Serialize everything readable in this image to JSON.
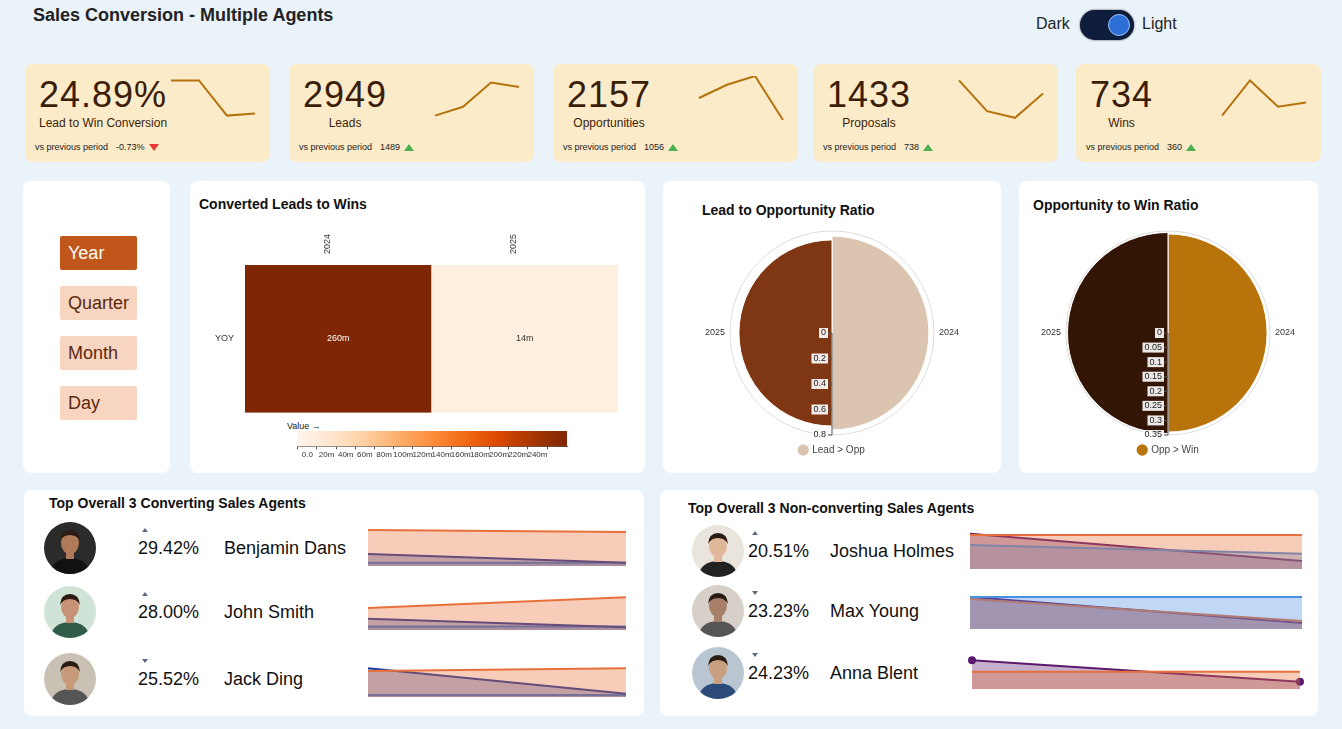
{
  "title": "Sales Conversion - Multiple Agents",
  "theme_toggle": [
    "Dark",
    "Light"
  ],
  "kpis": [
    {
      "value": "24.89%",
      "label": "Lead to Win Conversion",
      "comparison": "vs previous period",
      "delta": "-0.73%",
      "direction": "down",
      "chart_data": {
        "type": "line",
        "categories": [
          null,
          null,
          null,
          null
        ],
        "values": [
          9,
          9,
          1,
          1.5
        ],
        "color": "#b5730f",
        "ylim": [
          0,
          10
        ],
        "tick_labels": false
      }
    },
    {
      "value": "2949",
      "label": "Leads",
      "comparison": "vs previous period",
      "delta": "1489",
      "direction": "up",
      "chart_data": {
        "type": "line",
        "categories": [
          null,
          null,
          null,
          null
        ],
        "values": [
          1,
          3,
          8.5,
          7.5
        ],
        "color": "#b5730f",
        "ylim": [
          0,
          10
        ],
        "tick_labels": false
      }
    },
    {
      "value": "2157",
      "label": "Opportunities",
      "comparison": "vs previous period",
      "delta": "1056",
      "direction": "up",
      "chart_data": {
        "type": "line",
        "categories": [
          null,
          null,
          null,
          null
        ],
        "values": [
          5,
          8,
          10,
          0
        ],
        "color": "#b5730f",
        "ylim": [
          0,
          10
        ],
        "tick_labels": false
      }
    },
    {
      "value": "1433",
      "label": "Proposals",
      "comparison": "vs previous period",
      "delta": "738",
      "direction": "up",
      "chart_data": {
        "type": "line",
        "categories": [
          null,
          null,
          null,
          null
        ],
        "values": [
          9,
          2,
          0.5,
          6
        ],
        "color": "#b5730f",
        "ylim": [
          0,
          10
        ],
        "tick_labels": false
      }
    },
    {
      "value": "734",
      "label": "Wins",
      "comparison": "vs previous period",
      "delta": "360",
      "direction": "up",
      "chart_data": {
        "type": "line",
        "categories": [
          null,
          null,
          null,
          null
        ],
        "values": [
          1,
          9,
          3,
          4
        ],
        "color": "#b5730f",
        "ylim": [
          0,
          10
        ],
        "tick_labels": false
      }
    }
  ],
  "filters": {
    "options": [
      "Year",
      "Quarter",
      "Month",
      "Day"
    ],
    "selected": "Year"
  },
  "chart_data": [
    {
      "type": "heatmap",
      "title": "Converted Leads to Wins",
      "x": [
        "2024",
        "2025"
      ],
      "y": [
        "YOY"
      ],
      "values": [
        [
          260,
          14
        ]
      ],
      "value_labels": [
        [
          "260m",
          "14m"
        ]
      ],
      "data_labels": true,
      "colorbar": {
        "title": "Value →",
        "range": [
          0,
          260
        ],
        "ticks": [
          {
            "value": 0,
            "label": "0.0"
          },
          {
            "value": 20,
            "label": "20m"
          },
          {
            "value": 40,
            "label": "40m"
          },
          {
            "value": 60,
            "label": "60m"
          },
          {
            "value": 80,
            "label": "80m"
          },
          {
            "value": 100,
            "label": "100m"
          },
          {
            "value": 120,
            "label": "120m"
          },
          {
            "value": 140,
            "label": "140m"
          },
          {
            "value": 160,
            "label": "160m"
          },
          {
            "value": 180,
            "label": "180m"
          },
          {
            "value": 200,
            "label": "200m"
          },
          {
            "value": 220,
            "label": "220m"
          },
          {
            "value": 240,
            "label": "240m"
          }
        ]
      }
    },
    {
      "type": "polar",
      "title": "Lead to Opportunity Ratio",
      "categories": [
        "2024",
        "2025"
      ],
      "series": [
        {
          "name": "Lead > Opp",
          "values": [
            0.76,
            0.73
          ],
          "colors": [
            "#dcc5b0",
            "#7f3613"
          ]
        }
      ],
      "ylim": [
        0,
        0.8
      ],
      "yticks": [
        0,
        0.2,
        0.4,
        0.6,
        0.8
      ],
      "legend": "bottom"
    },
    {
      "type": "polar",
      "title": "Opportunity to Win Ratio",
      "categories": [
        "2024",
        "2025"
      ],
      "series": [
        {
          "name": "Opp > Win",
          "values": [
            0.34,
            0.345
          ],
          "colors": [
            "#b8730a",
            "#331505"
          ]
        }
      ],
      "ylim": [
        0,
        0.35
      ],
      "yticks": [
        0,
        0.05,
        0.1,
        0.15,
        0.2,
        0.25,
        0.3,
        0.35
      ],
      "legend": "bottom"
    }
  ],
  "agent_panels": [
    {
      "title": "Top Overall 3 Converting Sales Agents",
      "agents": [
        {
          "name": "Benjamin Dans",
          "rate": "29.42%",
          "direction": "up",
          "chart_data": {
            "type": "area",
            "categories": [
              null,
              null
            ],
            "ylim": [
              0,
              1
            ],
            "tick_labels": false,
            "series": [
              {
                "color": "#e8703a",
                "values": [
                  0.9,
                  0.85
                ]
              },
              {
                "color": "#1f3a9e",
                "values": [
                  0.3,
                  0.08
                ]
              },
              {
                "color": "#4a90e2",
                "values": [
                  0.08,
                  0.08
                ]
              }
            ]
          }
        },
        {
          "name": "John Smith",
          "rate": "28.00%",
          "direction": "up",
          "chart_data": {
            "type": "area",
            "categories": [
              null,
              null
            ],
            "ylim": [
              0,
              1
            ],
            "tick_labels": false,
            "series": [
              {
                "color": "#e8703a",
                "values": [
                  0.55,
                  0.82
                ]
              },
              {
                "color": "#1f3a9e",
                "values": [
                  0.28,
                  0.07
                ]
              },
              {
                "color": "#4a90e2",
                "values": [
                  0.09,
                  0.09
                ]
              }
            ]
          }
        },
        {
          "name": "Jack Ding",
          "rate": "25.52%",
          "direction": "down",
          "chart_data": {
            "type": "area",
            "categories": [
              null,
              null
            ],
            "ylim": [
              0,
              1
            ],
            "tick_labels": false,
            "series": [
              {
                "color": "#e8703a",
                "values": [
                  0.65,
                  0.72
                ]
              },
              {
                "color": "#1f3a9e",
                "values": [
                  0.72,
                  0.08
                ]
              },
              {
                "color": "#4a90e2",
                "values": [
                  0.05,
                  0.05
                ]
              }
            ]
          }
        }
      ]
    },
    {
      "title": "Top Overall 3 Non-converting Sales Agents",
      "agents": [
        {
          "name": "Joshua Holmes",
          "rate": "20.51%",
          "direction": "up",
          "chart_data": {
            "type": "area",
            "categories": [
              null,
              null
            ],
            "ylim": [
              0,
              1
            ],
            "tick_labels": false,
            "series": [
              {
                "color": "#e8703a",
                "values": [
                  0.85,
                  0.85
                ]
              },
              {
                "color": "#4a90e2",
                "values": [
                  0.6,
                  0.38
                ]
              },
              {
                "color": "#5b1a6e",
                "values": [
                  0.88,
                  0.2
                ]
              }
            ]
          }
        },
        {
          "name": "Max Young",
          "rate": "23.23%",
          "direction": "down",
          "chart_data": {
            "type": "area",
            "categories": [
              null,
              null
            ],
            "ylim": [
              0,
              1
            ],
            "tick_labels": false,
            "series": [
              {
                "color": "#4a90e2",
                "values": [
                  0.8,
                  0.8
                ]
              },
              {
                "color": "#e8703a",
                "values": [
                  0.75,
                  0.2
                ]
              },
              {
                "color": "#5b1a6e",
                "values": [
                  0.8,
                  0.15
                ]
              }
            ]
          }
        },
        {
          "name": "Anna Blent",
          "rate": "24.23%",
          "direction": "down",
          "chart_data": {
            "type": "area",
            "categories": [
              null,
              null
            ],
            "ylim": [
              0,
              1
            ],
            "tick_labels": false,
            "series": [
              {
                "color": "#e8703a",
                "values": [
                  0.48,
                  0.48
                ]
              },
              {
                "color": "#5b1a6e",
                "values": [
                  0.8,
                  0.2
                ],
                "marker": "circle"
              }
            ]
          }
        }
      ]
    }
  ]
}
